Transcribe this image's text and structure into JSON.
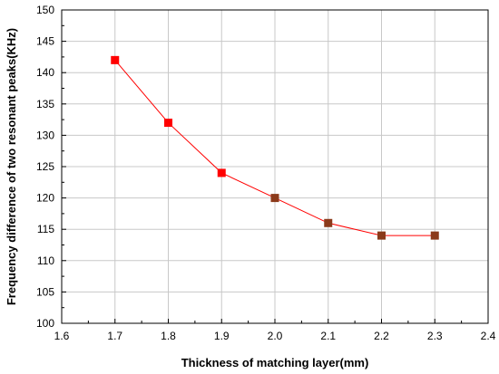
{
  "chart_data": {
    "type": "line",
    "title": "",
    "xlabel": "Thickness of matching layer(mm)",
    "ylabel": "Frequency difference of two resonant peaks(KHz)",
    "xlim": [
      1.6,
      2.4
    ],
    "ylim": [
      100,
      150
    ],
    "xticks": [
      "1.6",
      "1.7",
      "1.8",
      "1.9",
      "2.0",
      "2.1",
      "2.2",
      "2.3",
      "2.4"
    ],
    "yticks": [
      "100",
      "105",
      "110",
      "115",
      "120",
      "125",
      "130",
      "135",
      "140",
      "145",
      "150"
    ],
    "grid": true,
    "series": [
      {
        "x": [
          1.7,
          1.8,
          1.9,
          2.0,
          2.1,
          2.2,
          2.3
        ],
        "y": [
          142,
          132,
          124,
          120,
          116,
          114,
          114
        ],
        "line_color": "#ff0000",
        "marker": "square",
        "marker_colors": [
          "#ff0000",
          "#ff0000",
          "#ff0000",
          "#8b3a1a",
          "#8b3a1a",
          "#8b3a1a",
          "#8b3a1a"
        ]
      }
    ]
  }
}
